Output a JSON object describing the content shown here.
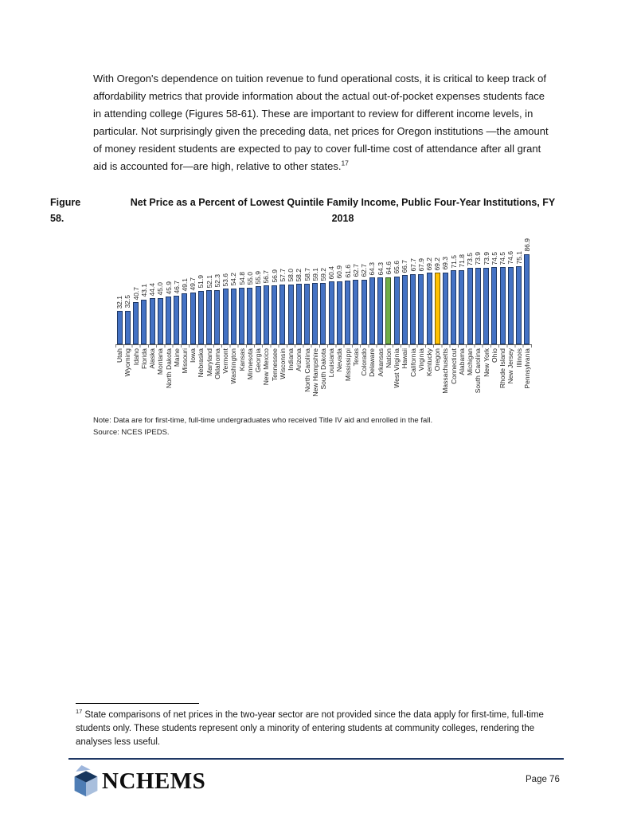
{
  "paragraph": {
    "text": "With Oregon's dependence on tuition revenue to fund operational costs, it is critical to keep track of affordability metrics that provide information about the actual out-of-pocket expenses students face in attending college (Figures 58-61). These are important to review for different income levels, in particular. Not surprisingly given the preceding data, net prices for Oregon institutions —the amount of money resident students are expected to pay to cover full-time cost of attendance after all grant aid is accounted for—are high, relative to other states.",
    "footnote_ref": "17"
  },
  "figure": {
    "label": "Figure 58.",
    "title_line1": "Net Price as a Percent of Lowest Quintile Family Income, Public Four-Year Institutions, FY",
    "title_line2": "2018"
  },
  "chart_data": {
    "type": "bar",
    "title": "Net Price as a Percent of Lowest Quintile Family Income, Public Four-Year Institutions, FY 2018",
    "xlabel": "",
    "ylabel": "",
    "ylim": [
      0,
      90
    ],
    "grid": false,
    "legend": "none",
    "value_labels": "rotated 90° above bars, one decimal",
    "category_labels": "rotated 90° below axis",
    "bar_fill": "#4472C4",
    "bar_border": "#1F3864",
    "highlight_colors": {
      "Nation": {
        "fill": "#70AD47",
        "border": "#375623"
      },
      "Oregon": {
        "fill": "#FFC000",
        "border": "#7F6000"
      }
    },
    "categories": [
      "Utah",
      "Wyoming",
      "Idaho",
      "Florida",
      "Alaska",
      "Montana",
      "North Dakota",
      "Maine",
      "Missouri",
      "Iowa",
      "Nebraska",
      "Maryland",
      "Oklahoma",
      "Vermont",
      "Washington",
      "Kansas",
      "Minnesota",
      "Georgia",
      "New Mexico",
      "Tennessee",
      "Wisconsin",
      "Indiana",
      "Arizona",
      "North Carolina",
      "New Hampshire",
      "South Dakota",
      "Louisiana",
      "Nevada",
      "Mississippi",
      "Texas",
      "Colorado",
      "Delaware",
      "Arkansas",
      "Nation",
      "West Virginia",
      "Hawaii",
      "California",
      "Virginia",
      "Kentucky",
      "Oregon",
      "Massachusetts",
      "Connecticut",
      "Alabama",
      "Michigan",
      "South Carolina",
      "New York",
      "Ohio",
      "Rhode Island",
      "New Jersey",
      "Illinois",
      "Pennsylvania"
    ],
    "values": [
      32.1,
      32.5,
      40.7,
      43.1,
      44.4,
      45.0,
      45.9,
      46.7,
      49.1,
      49.7,
      51.9,
      52.1,
      52.3,
      53.6,
      54.2,
      54.8,
      55.0,
      55.9,
      56.7,
      56.9,
      57.7,
      58.0,
      58.2,
      58.7,
      59.1,
      59.2,
      60.4,
      60.9,
      61.6,
      62.7,
      62.7,
      64.3,
      64.3,
      64.6,
      65.6,
      66.7,
      67.7,
      67.9,
      69.2,
      69.2,
      69.3,
      71.5,
      71.8,
      73.5,
      73.9,
      73.9,
      74.5,
      74.5,
      74.6,
      75.1,
      86.9
    ]
  },
  "notes": {
    "note": "Note: Data are for first-time, full-time undergraduates who received Title IV aid and enrolled in the fall.",
    "source": "Source: NCES IPEDS."
  },
  "footnote": {
    "ref": "17",
    "text": "State comparisons of net prices in the two-year sector are not provided since the data apply for first-time, full-time students only. These students represent only a minority of entering students at community colleges, rendering the analyses less useful."
  },
  "footer": {
    "logo_text": "NCHEMS",
    "page_label": "Page 76",
    "line_color": "#1F3864"
  }
}
